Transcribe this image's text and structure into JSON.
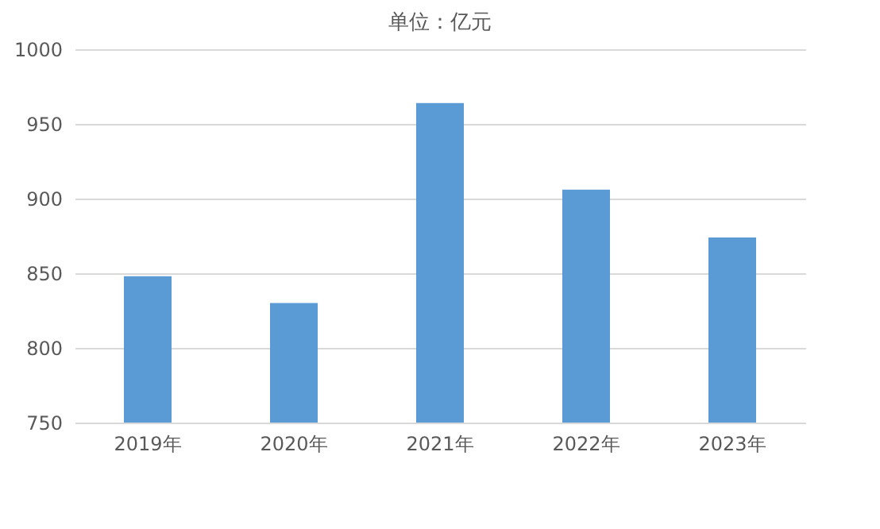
{
  "chart_data": {
    "type": "bar",
    "title": "单位：亿元",
    "categories": [
      "2019年",
      "2020年",
      "2021年",
      "2022年",
      "2023年"
    ],
    "values": [
      848,
      830,
      964,
      906,
      874
    ],
    "color": "#5b9bd5",
    "ylim": [
      750,
      1000
    ],
    "yticks": [
      750,
      800,
      850,
      900,
      950,
      1000
    ],
    "grid": "y"
  }
}
